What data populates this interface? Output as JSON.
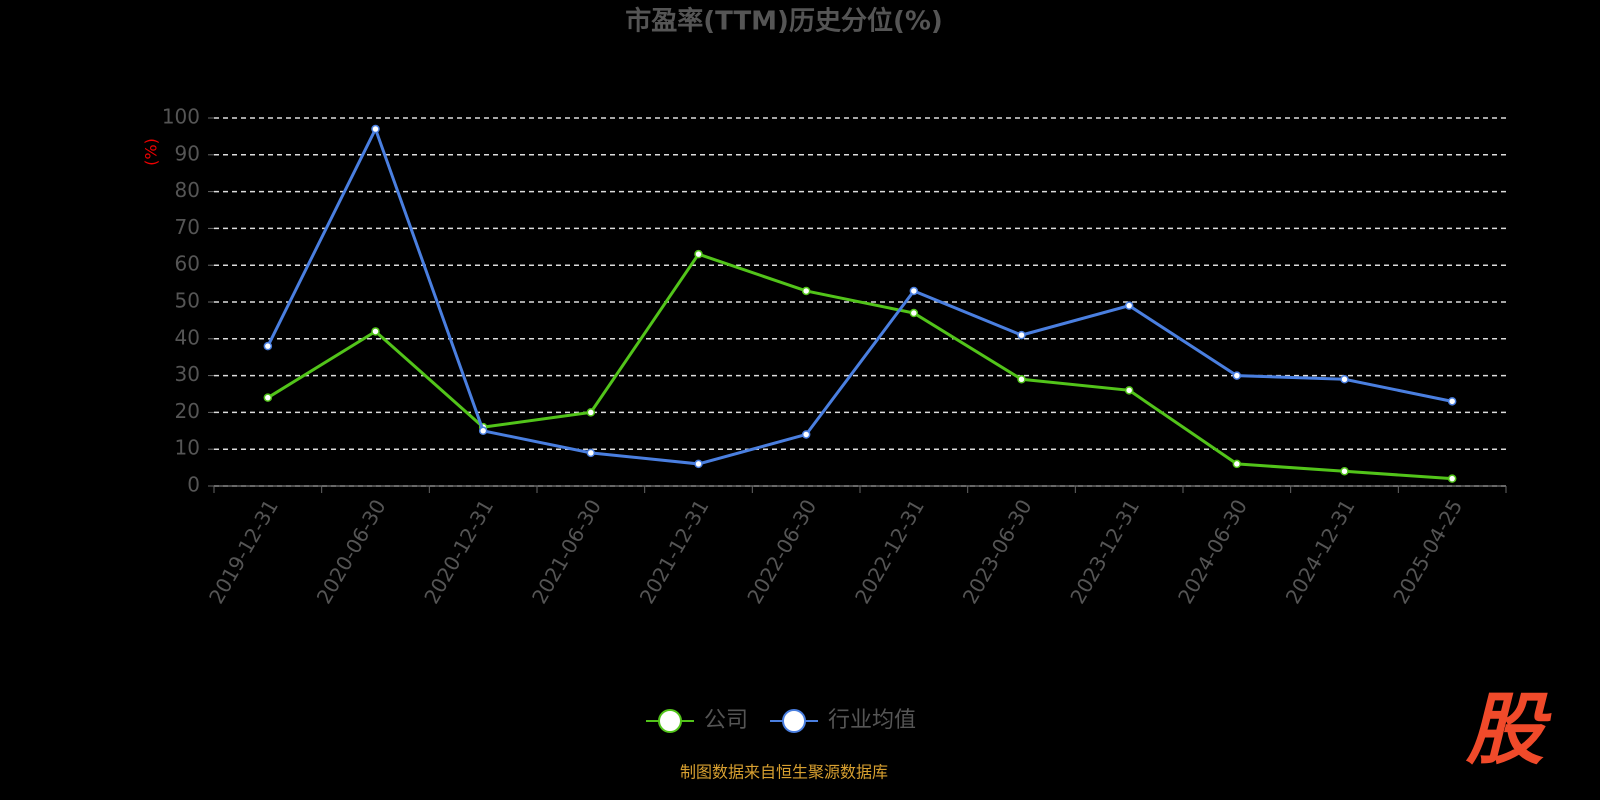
{
  "chart_data": {
    "type": "line",
    "title": "市盈率(TTM)历史分位(%)",
    "y_label": "(%)",
    "categories": [
      "2019-12-31",
      "2020-06-30",
      "2020-12-31",
      "2021-06-30",
      "2021-12-31",
      "2022-06-30",
      "2022-12-31",
      "2023-06-30",
      "2023-12-31",
      "2024-06-30",
      "2024-12-31",
      "2025-04-25"
    ],
    "series": [
      {
        "name": "公司",
        "color": "#52c41a",
        "values": [
          24,
          42,
          16,
          20,
          63,
          53,
          47,
          29,
          26,
          6,
          4,
          2
        ]
      },
      {
        "name": "行业均值",
        "color": "#4a7fe0",
        "values": [
          38,
          97,
          15,
          9,
          6,
          14,
          53,
          41,
          49,
          30,
          29,
          23
        ]
      }
    ],
    "ylim": [
      0,
      100
    ],
    "yticks": [
      0,
      10,
      20,
      30,
      40,
      50,
      60,
      70,
      80,
      90,
      100
    ],
    "grid": true,
    "legend": "bottom",
    "source": "制图数据来自恒生聚源数据库",
    "watermark": "股"
  }
}
